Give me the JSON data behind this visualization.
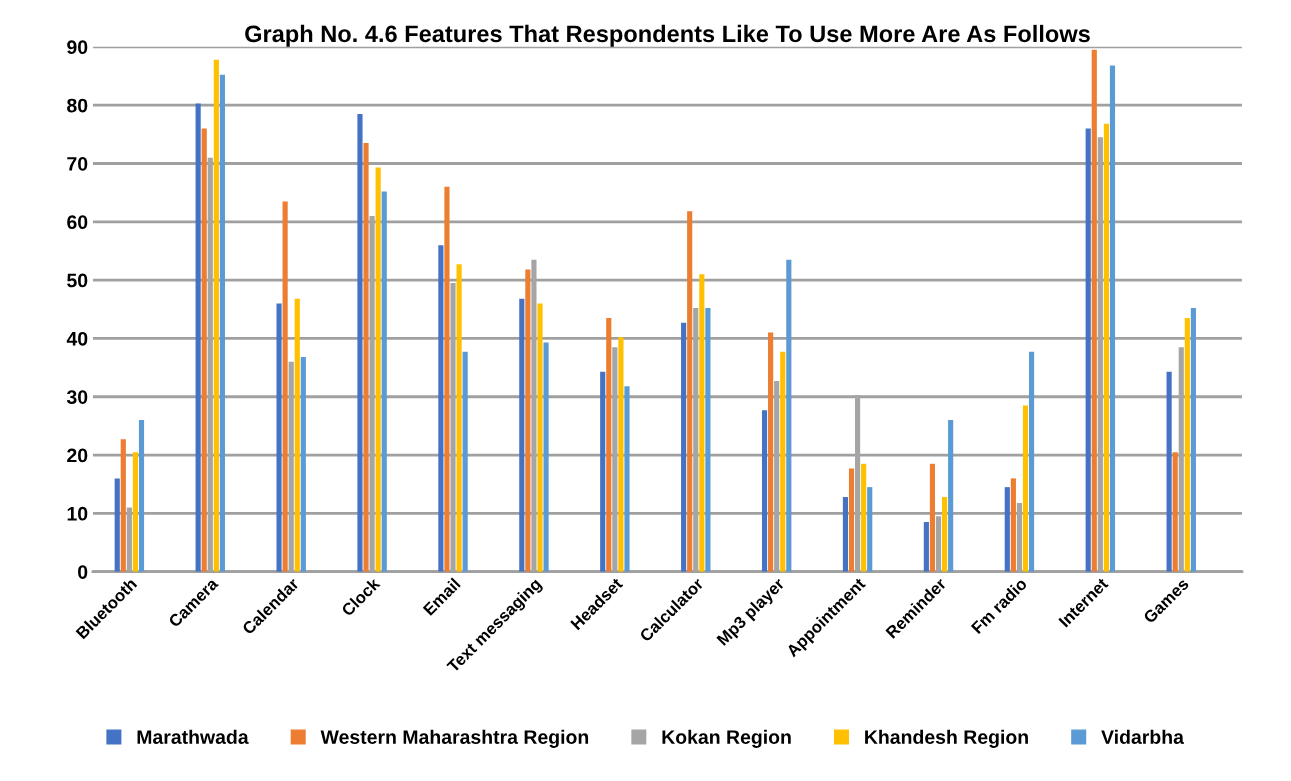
{
  "chart_data": {
    "type": "bar",
    "title": "Graph No. 4.6 Features That Respondents Like To Use More Are As Follows",
    "categories": [
      "Bluetooth",
      "Camera",
      "Calendar",
      "Clock",
      "Email",
      "Text messaging",
      "Headset",
      "Calculator",
      "Mp3 player",
      "Appointment",
      "Reminder",
      "Fm radio",
      "Internet",
      "Games"
    ],
    "series": [
      {
        "name": "Marathwada",
        "color": "#4472c4",
        "values": [
          16,
          80.3,
          46,
          78.5,
          56,
          46.8,
          34.3,
          42.7,
          27.7,
          12.8,
          8.5,
          14.5,
          76,
          34.3
        ]
      },
      {
        "name": "Western Maharashtra Region",
        "color": "#ed7d31",
        "values": [
          22.7,
          76,
          63.5,
          73.5,
          66,
          51.8,
          43.5,
          61.8,
          41,
          17.7,
          18.5,
          16,
          89.5,
          20.5
        ]
      },
      {
        "name": "Kokan Region",
        "color": "#a5a5a5",
        "values": [
          11,
          71,
          36,
          61,
          49.5,
          53.5,
          38.5,
          45.2,
          32.7,
          30.3,
          9.5,
          11.8,
          74.5,
          38.5
        ]
      },
      {
        "name": "Khandesh Region",
        "color": "#ffc000",
        "values": [
          20.5,
          87.8,
          46.8,
          69.3,
          52.7,
          46,
          40.2,
          51,
          37.7,
          18.5,
          12.8,
          28.5,
          76.8,
          43.5
        ]
      },
      {
        "name": "Vidarbha",
        "color": "#5b9bd5",
        "values": [
          26,
          85.2,
          36.8,
          65.2,
          37.7,
          39.3,
          31.8,
          45.2,
          53.5,
          14.5,
          26,
          37.7,
          86.8,
          45.2
        ]
      }
    ],
    "ylim": [
      0,
      90
    ],
    "yticks": [
      0,
      10,
      20,
      30,
      40,
      50,
      60,
      70,
      80,
      90
    ],
    "grid": "y",
    "legend": "bottom"
  }
}
